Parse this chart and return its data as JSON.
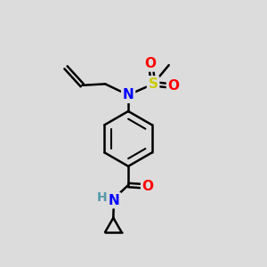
{
  "bg_color": "#dcdcdc",
  "bond_color": "#000000",
  "colors": {
    "N": "#0000ff",
    "O": "#ff0000",
    "S": "#cccc00",
    "C": "#000000",
    "H": "#5599aa"
  },
  "figsize": [
    3.0,
    3.0
  ],
  "dpi": 100,
  "xlim": [
    0,
    10
  ],
  "ylim": [
    0,
    10
  ]
}
